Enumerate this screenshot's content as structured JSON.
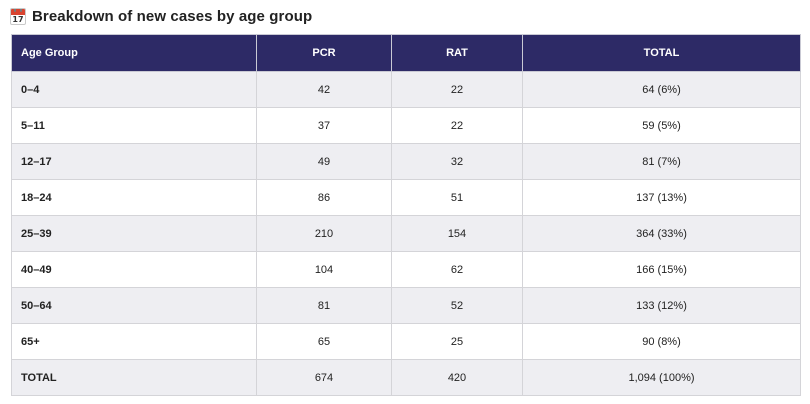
{
  "heading": {
    "icon": "calendar-icon",
    "icon_day": "17",
    "title": "Breakdown of new cases by age group"
  },
  "table": {
    "columns": [
      "Age Group",
      "PCR",
      "RAT",
      "TOTAL"
    ],
    "rows": [
      {
        "group": "0–4",
        "pcr": "42",
        "rat": "22",
        "total": "64 (6%)"
      },
      {
        "group": "5–11",
        "pcr": "37",
        "rat": "22",
        "total": "59 (5%)"
      },
      {
        "group": "12–17",
        "pcr": "49",
        "rat": "32",
        "total": "81 (7%)"
      },
      {
        "group": "18–24",
        "pcr": "86",
        "rat": "51",
        "total": "137 (13%)"
      },
      {
        "group": "25–39",
        "pcr": "210",
        "rat": "154",
        "total": "364 (33%)"
      },
      {
        "group": "40–49",
        "pcr": "104",
        "rat": "62",
        "total": "166 (15%)"
      },
      {
        "group": "50–64",
        "pcr": "81",
        "rat": "52",
        "total": "133 (12%)"
      },
      {
        "group": "65+",
        "pcr": "65",
        "rat": "25",
        "total": "90 (8%)"
      },
      {
        "group": "TOTAL",
        "pcr": "674",
        "rat": "420",
        "total": "1,094 (100%)"
      }
    ]
  },
  "colors": {
    "header_bg": "#2d2a66",
    "stripe_bg": "#eeeef2"
  }
}
